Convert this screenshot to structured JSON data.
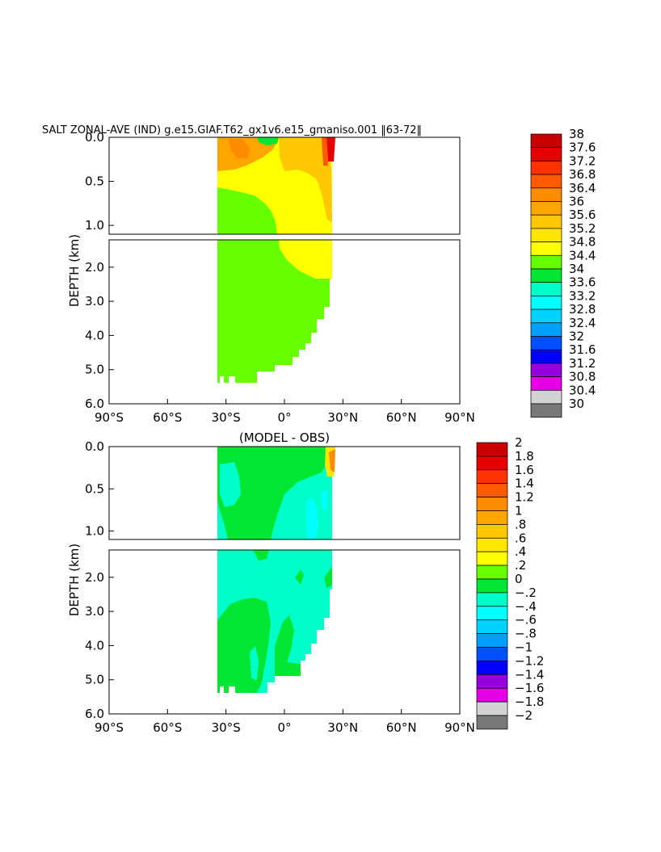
{
  "chart_data": [
    {
      "type": "heatmap",
      "title": "SALT ZONAL-AVE (IND) g.e15.GIAF.T62_gx1v6.e15_gmaniso.001 ‖63-72‖",
      "ylabel": "DEPTH (km)",
      "xlim": [
        -90,
        90
      ],
      "ylim_upper": [
        0,
        1.1
      ],
      "ylim_lower": [
        1.2,
        6.0
      ],
      "x_ticks": [
        "90°S",
        "60°S",
        "30°S",
        "0°",
        "30°N",
        "60°N",
        "90°N"
      ],
      "y_ticks_upper": [
        "0.0",
        "0.5",
        "1.0"
      ],
      "y_ticks_lower": [
        "2.0",
        "3.0",
        "4.0",
        "5.0",
        "6.0"
      ],
      "colorbar_levels": [
        "38",
        "37.6",
        "37.2",
        "36.8",
        "36.4",
        "36",
        "35.6",
        "35.2",
        "34.8",
        "34.4",
        "34",
        "33.6",
        "33.2",
        "32.8",
        "32.4",
        "32",
        "31.6",
        "31.2",
        "30.8",
        "30.4",
        "30"
      ],
      "colorbar_colors": [
        "#c80000",
        "#e60000",
        "#ff3300",
        "#ff5a00",
        "#ff8c00",
        "#ffa500",
        "#ffc800",
        "#ffe600",
        "#ffff00",
        "#66ff00",
        "#00e632",
        "#00ffc8",
        "#00ffff",
        "#00d2ff",
        "#00a0ff",
        "#0050ff",
        "#0000ff",
        "#9600dc",
        "#e600e6",
        "#d2d2d2",
        "#787878"
      ]
    },
    {
      "type": "heatmap",
      "title": "(MODEL - OBS)",
      "ylabel": "DEPTH (km)",
      "xlim": [
        -90,
        90
      ],
      "ylim_upper": [
        0,
        1.1
      ],
      "ylim_lower": [
        1.2,
        6.0
      ],
      "x_ticks": [
        "90°S",
        "60°S",
        "30°S",
        "0°",
        "30°N",
        "60°N",
        "90°N"
      ],
      "y_ticks_upper": [
        "0.0",
        "0.5",
        "1.0"
      ],
      "y_ticks_lower": [
        "2.0",
        "3.0",
        "4.0",
        "5.0",
        "6.0"
      ],
      "colorbar_levels": [
        "2",
        "1.8",
        "1.6",
        "1.4",
        "1.2",
        "1",
        ".8",
        ".6",
        ".4",
        ".2",
        "0",
        "−.2",
        "−.4",
        "−.6",
        "−.8",
        "−1",
        "−1.2",
        "−1.4",
        "−1.6",
        "−1.8",
        "−2"
      ],
      "colorbar_colors": [
        "#c80000",
        "#e60000",
        "#ff3300",
        "#ff5a00",
        "#ff8c00",
        "#ffa500",
        "#ffc800",
        "#ffe600",
        "#ffff00",
        "#66ff00",
        "#00e632",
        "#00ffc8",
        "#00ffff",
        "#00d2ff",
        "#00a0ff",
        "#0050ff",
        "#0000ff",
        "#9600dc",
        "#e600e6",
        "#d2d2d2",
        "#787878"
      ]
    }
  ]
}
